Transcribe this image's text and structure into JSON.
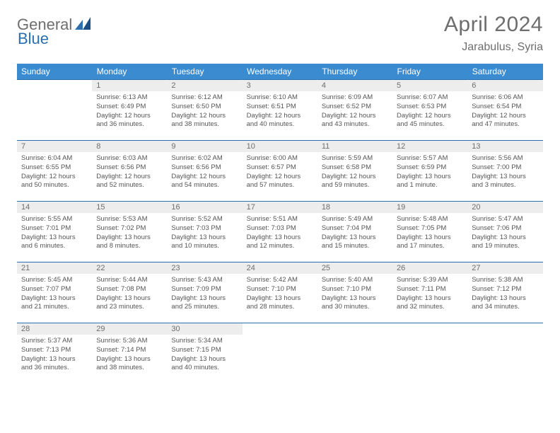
{
  "logo": {
    "part1": "General",
    "part2": "Blue"
  },
  "title": "April 2024",
  "location": "Jarabulus, Syria",
  "colors": {
    "header_bg": "#3a8bd0",
    "border": "#2b6fb0",
    "daynum_bg": "#ededed",
    "text_muted": "#6e6e6e",
    "body_text": "#555555"
  },
  "day_headers": [
    "Sunday",
    "Monday",
    "Tuesday",
    "Wednesday",
    "Thursday",
    "Friday",
    "Saturday"
  ],
  "weeks": [
    [
      null,
      {
        "n": "1",
        "sunrise": "6:13 AM",
        "sunset": "6:49 PM",
        "dl": "12 hours and 36 minutes."
      },
      {
        "n": "2",
        "sunrise": "6:12 AM",
        "sunset": "6:50 PM",
        "dl": "12 hours and 38 minutes."
      },
      {
        "n": "3",
        "sunrise": "6:10 AM",
        "sunset": "6:51 PM",
        "dl": "12 hours and 40 minutes."
      },
      {
        "n": "4",
        "sunrise": "6:09 AM",
        "sunset": "6:52 PM",
        "dl": "12 hours and 43 minutes."
      },
      {
        "n": "5",
        "sunrise": "6:07 AM",
        "sunset": "6:53 PM",
        "dl": "12 hours and 45 minutes."
      },
      {
        "n": "6",
        "sunrise": "6:06 AM",
        "sunset": "6:54 PM",
        "dl": "12 hours and 47 minutes."
      }
    ],
    [
      {
        "n": "7",
        "sunrise": "6:04 AM",
        "sunset": "6:55 PM",
        "dl": "12 hours and 50 minutes."
      },
      {
        "n": "8",
        "sunrise": "6:03 AM",
        "sunset": "6:56 PM",
        "dl": "12 hours and 52 minutes."
      },
      {
        "n": "9",
        "sunrise": "6:02 AM",
        "sunset": "6:56 PM",
        "dl": "12 hours and 54 minutes."
      },
      {
        "n": "10",
        "sunrise": "6:00 AM",
        "sunset": "6:57 PM",
        "dl": "12 hours and 57 minutes."
      },
      {
        "n": "11",
        "sunrise": "5:59 AM",
        "sunset": "6:58 PM",
        "dl": "12 hours and 59 minutes."
      },
      {
        "n": "12",
        "sunrise": "5:57 AM",
        "sunset": "6:59 PM",
        "dl": "13 hours and 1 minute."
      },
      {
        "n": "13",
        "sunrise": "5:56 AM",
        "sunset": "7:00 PM",
        "dl": "13 hours and 3 minutes."
      }
    ],
    [
      {
        "n": "14",
        "sunrise": "5:55 AM",
        "sunset": "7:01 PM",
        "dl": "13 hours and 6 minutes."
      },
      {
        "n": "15",
        "sunrise": "5:53 AM",
        "sunset": "7:02 PM",
        "dl": "13 hours and 8 minutes."
      },
      {
        "n": "16",
        "sunrise": "5:52 AM",
        "sunset": "7:03 PM",
        "dl": "13 hours and 10 minutes."
      },
      {
        "n": "17",
        "sunrise": "5:51 AM",
        "sunset": "7:03 PM",
        "dl": "13 hours and 12 minutes."
      },
      {
        "n": "18",
        "sunrise": "5:49 AM",
        "sunset": "7:04 PM",
        "dl": "13 hours and 15 minutes."
      },
      {
        "n": "19",
        "sunrise": "5:48 AM",
        "sunset": "7:05 PM",
        "dl": "13 hours and 17 minutes."
      },
      {
        "n": "20",
        "sunrise": "5:47 AM",
        "sunset": "7:06 PM",
        "dl": "13 hours and 19 minutes."
      }
    ],
    [
      {
        "n": "21",
        "sunrise": "5:45 AM",
        "sunset": "7:07 PM",
        "dl": "13 hours and 21 minutes."
      },
      {
        "n": "22",
        "sunrise": "5:44 AM",
        "sunset": "7:08 PM",
        "dl": "13 hours and 23 minutes."
      },
      {
        "n": "23",
        "sunrise": "5:43 AM",
        "sunset": "7:09 PM",
        "dl": "13 hours and 25 minutes."
      },
      {
        "n": "24",
        "sunrise": "5:42 AM",
        "sunset": "7:10 PM",
        "dl": "13 hours and 28 minutes."
      },
      {
        "n": "25",
        "sunrise": "5:40 AM",
        "sunset": "7:10 PM",
        "dl": "13 hours and 30 minutes."
      },
      {
        "n": "26",
        "sunrise": "5:39 AM",
        "sunset": "7:11 PM",
        "dl": "13 hours and 32 minutes."
      },
      {
        "n": "27",
        "sunrise": "5:38 AM",
        "sunset": "7:12 PM",
        "dl": "13 hours and 34 minutes."
      }
    ],
    [
      {
        "n": "28",
        "sunrise": "5:37 AM",
        "sunset": "7:13 PM",
        "dl": "13 hours and 36 minutes."
      },
      {
        "n": "29",
        "sunrise": "5:36 AM",
        "sunset": "7:14 PM",
        "dl": "13 hours and 38 minutes."
      },
      {
        "n": "30",
        "sunrise": "5:34 AM",
        "sunset": "7:15 PM",
        "dl": "13 hours and 40 minutes."
      },
      null,
      null,
      null,
      null
    ]
  ],
  "labels": {
    "sunrise": "Sunrise:",
    "sunset": "Sunset:",
    "daylight": "Daylight:"
  }
}
